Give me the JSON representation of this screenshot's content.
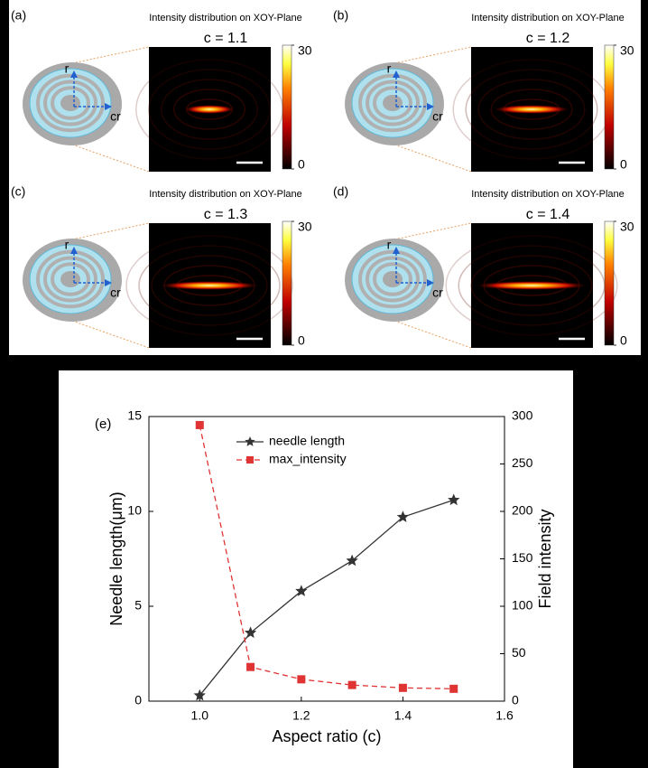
{
  "panels": [
    {
      "label": "(a)",
      "title": "Intensity distribution on XOY-Plane",
      "subtitle": "c = 1.1",
      "axis_labels": [
        "r",
        "cr"
      ],
      "colorbar": {
        "lim": [
          0,
          30
        ],
        "ticks": [
          30,
          0
        ]
      }
    },
    {
      "label": "(b)",
      "title": "Intensity distribution on XOY-Plane",
      "subtitle": "c = 1.2",
      "axis_labels": [
        "r",
        "cr"
      ],
      "colorbar": {
        "lim": [
          0,
          30
        ],
        "ticks": [
          30,
          0
        ]
      }
    },
    {
      "label": "(c)",
      "title": "Intensity distribution on XOY-Plane",
      "subtitle": "c = 1.3",
      "axis_labels": [
        "r",
        "cr"
      ],
      "colorbar": {
        "lim": [
          0,
          30
        ],
        "ticks": [
          30,
          0
        ]
      }
    },
    {
      "label": "(d)",
      "title": "Intensity distribution on XOY-Plane",
      "subtitle": "c = 1.4",
      "axis_labels": [
        "r",
        "cr"
      ],
      "colorbar": {
        "lim": [
          0,
          30
        ],
        "ticks": [
          30,
          0
        ]
      }
    }
  ],
  "chart_data": {
    "type": "line",
    "label": "(e)",
    "x_label": "Aspect ratio (c)",
    "y_label": "Needle length(μm)",
    "y2_label": "Field intensity",
    "x": [
      1.0,
      1.1,
      1.2,
      1.3,
      1.4,
      1.5
    ],
    "xlim": [
      0.9,
      1.6
    ],
    "xticks": [
      {
        "value": 1.0,
        "label": "1.0"
      },
      {
        "value": 1.2,
        "label": "1.2"
      },
      {
        "value": 1.4,
        "label": "1.4"
      },
      {
        "value": 1.6,
        "label": "1.6"
      }
    ],
    "ylim": [
      0,
      15
    ],
    "yticks": [
      0,
      5,
      10,
      15
    ],
    "y2lim": [
      0,
      300
    ],
    "y2ticks": [
      0,
      50,
      100,
      150,
      200,
      250,
      300
    ],
    "legend": "upper left",
    "series": [
      {
        "name": "needle length",
        "color": "#333333",
        "marker": "star",
        "dash": false,
        "values": [
          0.3,
          3.6,
          5.8,
          7.4,
          9.7,
          10.6
        ]
      },
      {
        "name": "max_intensity",
        "color": "#e03434",
        "marker": "square",
        "dash": true,
        "axis": "y2",
        "values": [
          291,
          36,
          23,
          17,
          14,
          13
        ]
      }
    ]
  }
}
